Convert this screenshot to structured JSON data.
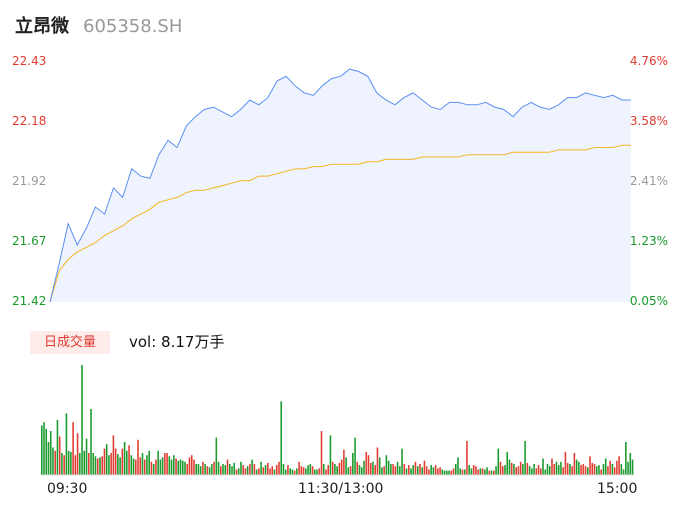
{
  "header": {
    "name": "立昂微",
    "code": "605358.SH"
  },
  "colors": {
    "up": "#e03c31",
    "down": "#1a9a2c",
    "flat": "#999999",
    "price_line": "#5b8ff0",
    "avg_line": "#f5b423",
    "area_fill": "#eef3fd"
  },
  "volume_tag": "日成交量",
  "volume_text": "vol: 8.17万手",
  "chart_data": [
    {
      "type": "line",
      "name": "intraday",
      "prev_close": 21.41,
      "ylim": [
        21.42,
        22.43
      ],
      "y_ticks_left": [
        "22.43",
        "22.18",
        "21.92",
        "21.67",
        "21.42"
      ],
      "y_ticks_right": [
        "4.76%",
        "3.58%",
        "2.41%",
        "1.23%",
        "0.05%"
      ],
      "x_ticks": [
        "09:30",
        "11:30/13:00",
        "15:00"
      ],
      "series": [
        {
          "key": "price",
          "values": [
            21.42,
            21.58,
            21.75,
            21.66,
            21.73,
            21.82,
            21.79,
            21.9,
            21.86,
            21.98,
            21.95,
            21.94,
            22.04,
            22.1,
            22.07,
            22.16,
            22.2,
            22.23,
            22.24,
            22.22,
            22.2,
            22.23,
            22.27,
            22.25,
            22.28,
            22.35,
            22.37,
            22.33,
            22.3,
            22.29,
            22.33,
            22.36,
            22.37,
            22.4,
            22.39,
            22.37,
            22.3,
            22.27,
            22.25,
            22.28,
            22.3,
            22.27,
            22.24,
            22.23,
            22.26,
            22.26,
            22.25,
            22.25,
            22.26,
            22.24,
            22.23,
            22.2,
            22.24,
            22.26,
            22.24,
            22.23,
            22.25,
            22.28,
            22.28,
            22.3,
            22.29,
            22.28,
            22.29,
            22.27,
            22.27
          ]
        },
        {
          "key": "avg",
          "values": [
            21.42,
            21.55,
            21.6,
            21.63,
            21.65,
            21.67,
            21.7,
            21.72,
            21.74,
            21.77,
            21.79,
            21.81,
            21.84,
            21.85,
            21.86,
            21.88,
            21.89,
            21.89,
            21.9,
            21.91,
            21.92,
            21.93,
            21.93,
            21.95,
            21.95,
            21.96,
            21.97,
            21.98,
            21.98,
            21.99,
            21.99,
            22.0,
            22.0,
            22.0,
            22.0,
            22.01,
            22.01,
            22.02,
            22.02,
            22.02,
            22.02,
            22.03,
            22.03,
            22.03,
            22.03,
            22.03,
            22.04,
            22.04,
            22.04,
            22.04,
            22.04,
            22.05,
            22.05,
            22.05,
            22.05,
            22.05,
            22.06,
            22.06,
            22.06,
            22.06,
            22.07,
            22.07,
            22.07,
            22.08,
            22.08
          ]
        }
      ]
    },
    {
      "type": "bar",
      "name": "volume",
      "values": [
        45,
        48,
        42,
        30,
        40,
        25,
        22,
        50,
        35,
        20,
        18,
        56,
        22,
        21,
        48,
        18,
        38,
        20,
        100,
        22,
        33,
        20,
        60,
        20,
        17,
        15,
        16,
        17,
        24,
        28,
        18,
        20,
        36,
        24,
        19,
        16,
        24,
        30,
        22,
        27,
        18,
        15,
        14,
        32,
        16,
        20,
        14,
        18,
        22,
        12,
        10,
        14,
        22,
        14,
        16,
        20,
        20,
        17,
        14,
        18,
        15,
        13,
        14,
        13,
        12,
        10,
        16,
        18,
        14,
        10,
        10,
        8,
        12,
        10,
        8,
        7,
        10,
        12,
        34,
        12,
        8,
        10,
        9,
        14,
        10,
        8,
        11,
        5,
        6,
        12,
        9,
        6,
        8,
        10,
        14,
        10,
        5,
        6,
        12,
        7,
        9,
        11,
        6,
        8,
        5,
        9,
        12,
        67,
        10,
        5,
        9,
        6,
        5,
        4,
        6,
        12,
        8,
        7,
        6,
        9,
        10,
        8,
        5,
        5,
        6,
        40,
        10,
        5,
        9,
        36,
        12,
        10,
        8,
        11,
        14,
        23,
        16,
        7,
        8,
        20,
        34,
        12,
        9,
        7,
        13,
        21,
        18,
        11,
        12,
        9,
        25,
        16,
        7,
        8,
        18,
        13,
        10,
        10,
        8,
        12,
        8,
        24,
        10,
        6,
        9,
        6,
        9,
        12,
        8,
        10,
        7,
        13,
        8,
        5,
        9,
        7,
        9,
        6,
        7,
        5,
        4,
        4,
        4,
        4,
        6,
        10,
        16,
        6,
        5,
        5,
        31,
        9,
        6,
        9,
        8,
        5,
        6,
        6,
        5,
        7,
        4,
        4,
        4,
        8,
        24,
        12,
        8,
        9,
        21,
        14,
        11,
        10,
        7,
        8,
        12,
        10,
        31,
        11,
        8,
        6,
        10,
        6,
        9,
        6,
        15,
        5,
        10,
        8,
        15,
        10,
        12,
        9,
        12,
        7,
        21,
        11,
        10,
        8,
        20,
        14,
        12,
        9,
        10,
        8,
        7,
        17,
        11,
        10,
        8,
        9,
        5,
        10,
        15,
        8,
        13,
        10,
        7,
        13,
        17,
        10,
        5,
        30,
        12,
        20,
        14
      ],
      "dirs": "ddddddudududdduuudddduddduduudduuudduddudduuududdududdduudddudddduuuudddududdudduddudddudduudududududuuuduudddudduduuudddudduuduududduuuddudduddduuuduudduddduudddududdududuuudduuudddduudddududduuududdududduuddduduuudduddduuudddduuddduuuduudduuuduuuddudduuduuuddd"
    }
  ]
}
